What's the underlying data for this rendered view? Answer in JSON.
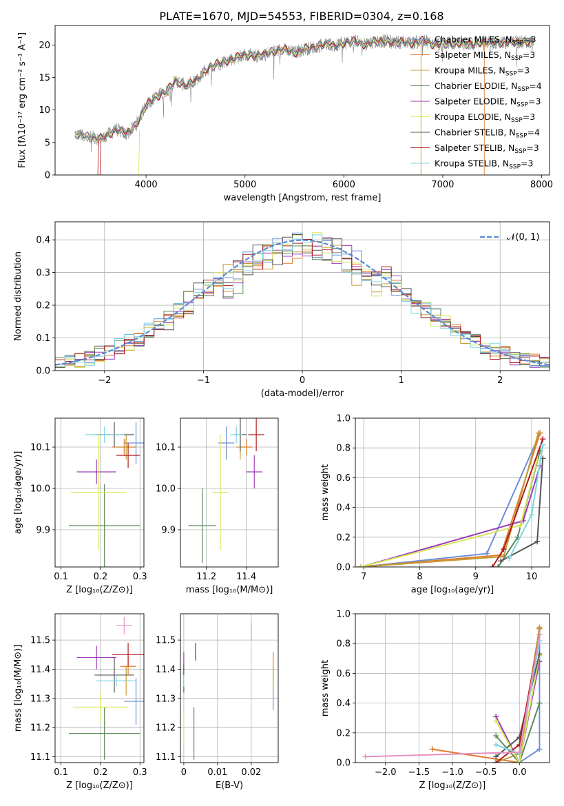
{
  "title": "PLATE=1670, MJD=54553, FIBERID=0304, z=0.168",
  "colors": {
    "Chabrier MILES": "#6b8fd6",
    "Salpeter MILES": "#e07b2c",
    "Kroupa MILES": "#c59a36",
    "Chabrier ELODIE": "#5b8a5b",
    "Salpeter ELODIE": "#9b3db8",
    "Kroupa ELODIE": "#d8e85a",
    "Chabrier STELIB": "#555555",
    "Salpeter STELIB": "#b01a1a",
    "Kroupa STELIB": "#7fd3e0",
    "Normal": "#5b8ad6"
  },
  "chart_data": [
    {
      "type": "line",
      "title": "PLATE=1670, MJD=54553, FIBERID=0304, z=0.168",
      "xlabel": "wavelength [Angstrom, rest frame]",
      "ylabel": "Flux [fλ10⁻¹⁷ erg cm⁻² s⁻¹ A⁻¹]",
      "xlim": [
        3080,
        8080
      ],
      "ylim": [
        0,
        23
      ],
      "xticks": [
        4000,
        5000,
        6000,
        7000,
        8000
      ],
      "yticks": [
        0,
        5,
        10,
        15,
        20
      ],
      "legend_position": "top-right",
      "spectrum_anchors": {
        "x": [
          3280,
          3400,
          3550,
          3700,
          3800,
          3900,
          3960,
          4000,
          4100,
          4200,
          4300,
          4400,
          4500,
          4600,
          4700,
          4800,
          4900,
          5000,
          5100,
          5200,
          5300,
          5400,
          5500,
          5600,
          5700,
          5800,
          5900,
          6000,
          6100,
          6200,
          6300,
          6400,
          6500,
          6600,
          6700,
          6800,
          6900,
          7000,
          7100,
          7200,
          7300,
          7400,
          7500,
          7600,
          7700,
          7800,
          7920
        ],
        "y": [
          6.3,
          5.9,
          5.6,
          7.0,
          6.3,
          7.7,
          9.5,
          10.8,
          12.0,
          12.8,
          14.5,
          13.8,
          14.4,
          16.1,
          17.0,
          17.5,
          18.0,
          18.5,
          18.2,
          18.6,
          19.1,
          19.3,
          18.8,
          19.4,
          19.6,
          20.2,
          19.8,
          20.3,
          20.6,
          20.1,
          20.5,
          20.6,
          20.4,
          20.5,
          20.3,
          20.7,
          20.1,
          20.2,
          20.1,
          20.3,
          20.0,
          20.6,
          20.3,
          20.4,
          20.5,
          20.4,
          20.6
        ]
      },
      "series": [
        {
          "name": "Chabrier MILES, N_SSP=3"
        },
        {
          "name": "Salpeter MILES, N_SSP=3"
        },
        {
          "name": "Kroupa MILES, N_SSP=3"
        },
        {
          "name": "Chabrier ELODIE, N_SSP=4"
        },
        {
          "name": "Salpeter ELODIE, N_SSP=3"
        },
        {
          "name": "Kroupa ELODIE, N_SSP=3"
        },
        {
          "name": "Chabrier STELIB, N_SSP=4"
        },
        {
          "name": "Salpeter STELIB, N_SSP=3"
        },
        {
          "name": "Kroupa STELIB, N_SSP=3"
        }
      ]
    },
    {
      "type": "line",
      "xlabel": "(data-model)/error",
      "ylabel": "Normed distribution",
      "xlim": [
        -2.5,
        2.5
      ],
      "ylim": [
        0,
        0.455
      ],
      "xticks": [
        -2,
        -1,
        0,
        1,
        2
      ],
      "yticks": [
        0.0,
        0.1,
        0.2,
        0.3,
        0.4
      ],
      "legend": "𝒩(0, 1)",
      "legend_position": "top-right",
      "bin_width": 0.1,
      "bin_start": -2.5
    },
    {
      "type": "scatter",
      "xlabel": "Z [log₁₀(Z/Z⊙)]",
      "ylabel": "age  [log₁₀(age/yr)]",
      "xlim": [
        0.085,
        0.31
      ],
      "ylim": [
        9.81,
        10.17
      ],
      "xticks": [
        0.1,
        0.2,
        0.3
      ],
      "yticks": [
        9.9,
        10.0,
        10.1
      ],
      "points": [
        {
          "model": "Chabrier MILES",
          "x": 0.29,
          "xerr": 0.03,
          "y": 10.11,
          "yerr": 0.05
        },
        {
          "model": "Salpeter MILES",
          "x": 0.26,
          "xerr": 0.03,
          "y": 10.1,
          "yerr": 0.02
        },
        {
          "model": "Kroupa MILES",
          "x": 0.265,
          "xerr": 0.02,
          "y": 10.1,
          "yerr": 0.03
        },
        {
          "model": "Chabrier ELODIE",
          "x": 0.21,
          "xerr": 0.09,
          "y": 9.91,
          "yerr": 0.1
        },
        {
          "model": "Salpeter ELODIE",
          "x": 0.19,
          "xerr": 0.05,
          "y": 10.04,
          "yerr": 0.03
        },
        {
          "model": "Kroupa ELODIE",
          "x": 0.195,
          "xerr": 0.07,
          "y": 9.99,
          "yerr": 0.14
        },
        {
          "model": "Chabrier STELIB",
          "x": 0.235,
          "xerr": 0.05,
          "y": 10.13,
          "yerr": 0.03
        },
        {
          "model": "Salpeter STELIB",
          "x": 0.27,
          "xerr": 0.03,
          "y": 10.08,
          "yerr": 0.03
        },
        {
          "model": "Kroupa STELIB",
          "x": 0.21,
          "xerr": 0.05,
          "y": 10.13,
          "yerr": 0.02
        }
      ]
    },
    {
      "type": "scatter",
      "xlabel": "mass [log₁₀(M/M⊙)]",
      "xlim": [
        11.07,
        11.56
      ],
      "ylim": [
        9.81,
        10.17
      ],
      "xticks": [
        11.2,
        11.4
      ],
      "yticks": [
        9.9,
        10.0,
        10.1
      ],
      "points": [
        {
          "model": "Chabrier MILES",
          "x": 11.3,
          "xerr": 0.04,
          "y": 10.11,
          "yerr": 0.04
        },
        {
          "model": "Salpeter MILES",
          "x": 11.4,
          "xerr": 0.03,
          "y": 10.1,
          "yerr": 0.02
        },
        {
          "model": "Kroupa MILES",
          "x": 11.37,
          "xerr": 0.02,
          "y": 10.1,
          "yerr": 0.03
        },
        {
          "model": "Chabrier ELODIE",
          "x": 11.18,
          "xerr": 0.07,
          "y": 9.91,
          "yerr": 0.09
        },
        {
          "model": "Salpeter ELODIE",
          "x": 11.44,
          "xerr": 0.04,
          "y": 10.04,
          "yerr": 0.04
        },
        {
          "model": "Kroupa ELODIE",
          "x": 11.27,
          "xerr": 0.04,
          "y": 9.99,
          "yerr": 0.14
        },
        {
          "model": "Chabrier STELIB",
          "x": 11.37,
          "xerr": 0.03,
          "y": 10.13,
          "yerr": 0.04
        },
        {
          "model": "Salpeter STELIB",
          "x": 11.45,
          "xerr": 0.04,
          "y": 10.13,
          "yerr": 0.04
        },
        {
          "model": "Kroupa STELIB",
          "x": 11.35,
          "xerr": 0.03,
          "y": 10.13,
          "yerr": 0.02
        }
      ]
    },
    {
      "type": "line",
      "xlabel": "age  [log₁₀(age/yr)]",
      "ylabel": "mass weight",
      "xlim": [
        6.85,
        10.32
      ],
      "ylim": [
        0,
        1.0
      ],
      "xticks": [
        7,
        8,
        9,
        10
      ],
      "yticks": [
        0.0,
        0.2,
        0.4,
        0.6,
        0.8,
        1.0
      ],
      "series": [
        {
          "model": "Chabrier MILES",
          "x": [
            6.95,
            9.2,
            10.15
          ],
          "y": [
            0.0,
            0.09,
            0.9
          ]
        },
        {
          "model": "Salpeter MILES",
          "x": [
            6.95,
            9.45,
            10.15
          ],
          "y": [
            0.0,
            0.08,
            0.9
          ]
        },
        {
          "model": "Kroupa MILES",
          "x": [
            6.95,
            9.5,
            10.12
          ],
          "y": [
            0.0,
            0.07,
            0.9
          ]
        },
        {
          "model": "Chabrier ELODIE",
          "x": [
            9.4,
            9.75,
            10.15
          ],
          "y": [
            0.0,
            0.2,
            0.78
          ]
        },
        {
          "model": "Salpeter ELODIE",
          "x": [
            6.95,
            9.85,
            10.15
          ],
          "y": [
            0.0,
            0.31,
            0.68
          ]
        },
        {
          "model": "Kroupa ELODIE",
          "x": [
            6.95,
            9.8,
            10.1
          ],
          "y": [
            0.0,
            0.28,
            0.72
          ]
        },
        {
          "model": "Chabrier STELIB",
          "x": [
            9.45,
            10.1,
            10.2
          ],
          "y": [
            0.04,
            0.17,
            0.73
          ]
        },
        {
          "model": "Salpeter STELIB",
          "x": [
            9.3,
            9.5,
            10.2
          ],
          "y": [
            0.0,
            0.12,
            0.86
          ]
        },
        {
          "model": "Kroupa STELIB",
          "x": [
            9.6,
            10.0,
            10.2
          ],
          "y": [
            0.06,
            0.35,
            0.82
          ]
        }
      ]
    },
    {
      "type": "scatter",
      "xlabel": "Z [log₁₀(Z/Z⊙)]",
      "ylabel": "mass [log₁₀(M/M⊙)]",
      "xlim": [
        0.085,
        0.31
      ],
      "ylim": [
        11.08,
        11.59
      ],
      "xticks": [
        0.1,
        0.2,
        0.3
      ],
      "yticks": [
        11.1,
        11.2,
        11.3,
        11.4,
        11.5
      ],
      "points": [
        {
          "model": "Chabrier MILES",
          "x": 0.29,
          "xerr": 0.03,
          "y": 11.29,
          "yerr": 0.08
        },
        {
          "model": "Salpeter MILES",
          "x": 0.27,
          "xerr": 0.02,
          "y": 11.41,
          "yerr": 0.03
        },
        {
          "model": "Kroupa MILES",
          "x": 0.265,
          "xerr": 0.01,
          "y": 11.36,
          "yerr": 0.05
        },
        {
          "model": "Chabrier ELODIE",
          "x": 0.21,
          "xerr": 0.09,
          "y": 11.18,
          "yerr": 0.09
        },
        {
          "model": "Salpeter ELODIE",
          "x": 0.19,
          "xerr": 0.05,
          "y": 11.44,
          "yerr": 0.04
        },
        {
          "model": "Kroupa ELODIE",
          "x": 0.2,
          "xerr": 0.07,
          "y": 11.27,
          "yerr": 0.05
        },
        {
          "model": "Chabrier STELIB",
          "x": 0.235,
          "xerr": 0.05,
          "y": 11.38,
          "yerr": 0.06
        },
        {
          "model": "Salpeter STELIB",
          "x": 0.27,
          "xerr": 0.04,
          "y": 11.45,
          "yerr": 0.04
        },
        {
          "model": "Kroupa STELIB",
          "x": 0.24,
          "xerr": 0.05,
          "y": 11.36,
          "yerr": 0.02
        },
        {
          "model": "Kroupa STELIB pink",
          "x": 0.26,
          "xerr": 0.02,
          "y": 11.55,
          "yerr": 0.03
        }
      ]
    },
    {
      "type": "scatter",
      "xlabel": "E(B-V)",
      "xlim": [
        -0.001,
        0.028
      ],
      "ylim": [
        11.08,
        11.59
      ],
      "xticks": [
        0.0,
        0.01,
        0.02
      ],
      "yticks": [
        11.1,
        11.2,
        11.3,
        11.4,
        11.5
      ],
      "points": [
        {
          "model": "Chabrier MILES",
          "x": 0.0265,
          "y": 11.3,
          "yerr": 0.04
        },
        {
          "model": "Salpeter MILES",
          "x": 0.0265,
          "y": 11.41,
          "yerr": 0.05
        },
        {
          "model": "Kroupa MILES",
          "x": 0.0265,
          "y": 11.37,
          "yerr": 0.04
        },
        {
          "model": "Chabrier ELODIE",
          "x": 0.003,
          "y": 11.18,
          "yerr": 0.09
        },
        {
          "model": "Salpeter ELODIE",
          "x": 0.0,
          "y": 11.42,
          "yerr": 0.04
        },
        {
          "model": "Kroupa ELODIE",
          "x": 0.0,
          "y": 11.2,
          "yerr": 0.06
        },
        {
          "model": "Chabrier STELIB",
          "x": 0.0,
          "y": 11.37,
          "yerr": 0.05
        },
        {
          "model": "Salpeter STELIB",
          "x": 0.0035,
          "y": 11.46,
          "yerr": 0.03
        },
        {
          "model": "Kroupa STELIB",
          "x": 0.0,
          "y": 11.36,
          "yerr": 0.02
        },
        {
          "model": "Kroupa STELIB pink",
          "x": 0.02,
          "y": 11.53,
          "yerr": 0.03
        }
      ]
    },
    {
      "type": "line",
      "xlabel": "Z [log₁₀(Z/Z⊙)]",
      "ylabel": "mass weight",
      "xlim": [
        -2.45,
        0.45
      ],
      "ylim": [
        0,
        1.0
      ],
      "xticks": [
        -2.0,
        -1.5,
        -1.0,
        -0.5,
        0.0
      ],
      "yticks": [
        0.0,
        0.2,
        0.4,
        0.6,
        0.8,
        1.0
      ],
      "series": [
        {
          "model": "Chabrier MILES",
          "x": [
            0.0,
            0.3,
            0.3
          ],
          "y": [
            0.0,
            0.09,
            0.9
          ]
        },
        {
          "model": "Salpeter MILES",
          "x": [
            -1.3,
            0.0,
            0.3
          ],
          "y": [
            0.09,
            0.0,
            0.9
          ]
        },
        {
          "model": "Kroupa MILES",
          "x": [
            -0.35,
            0.0,
            0.3
          ],
          "y": [
            0.0,
            0.06,
            0.91
          ]
        },
        {
          "model": "Chabrier ELODIE",
          "x": [
            -0.35,
            0.0,
            0.3
          ],
          "y": [
            0.18,
            0.0,
            0.4
          ]
        },
        {
          "model": "Salpeter ELODIE",
          "x": [
            -0.35,
            0.0,
            0.3
          ],
          "y": [
            0.31,
            0.0,
            0.68
          ]
        },
        {
          "model": "Kroupa ELODIE",
          "x": [
            -0.35,
            0.0,
            0.3
          ],
          "y": [
            0.28,
            0.0,
            0.72
          ]
        },
        {
          "model": "Chabrier STELIB",
          "x": [
            -0.35,
            0.0,
            0.3
          ],
          "y": [
            0.04,
            0.17,
            0.73
          ]
        },
        {
          "model": "Salpeter STELIB",
          "x": [
            -0.35,
            0.0,
            0.3
          ],
          "y": [
            0.0,
            0.12,
            0.86
          ]
        },
        {
          "model": "Kroupa STELIB",
          "x": [
            -0.35,
            0.0,
            0.3
          ],
          "y": [
            0.12,
            0.06,
            0.82
          ]
        },
        {
          "model": "Kroupa STELIB pink",
          "x": [
            -2.3,
            0.0,
            0.3
          ],
          "y": [
            0.04,
            0.07,
            0.86
          ]
        }
      ]
    }
  ]
}
